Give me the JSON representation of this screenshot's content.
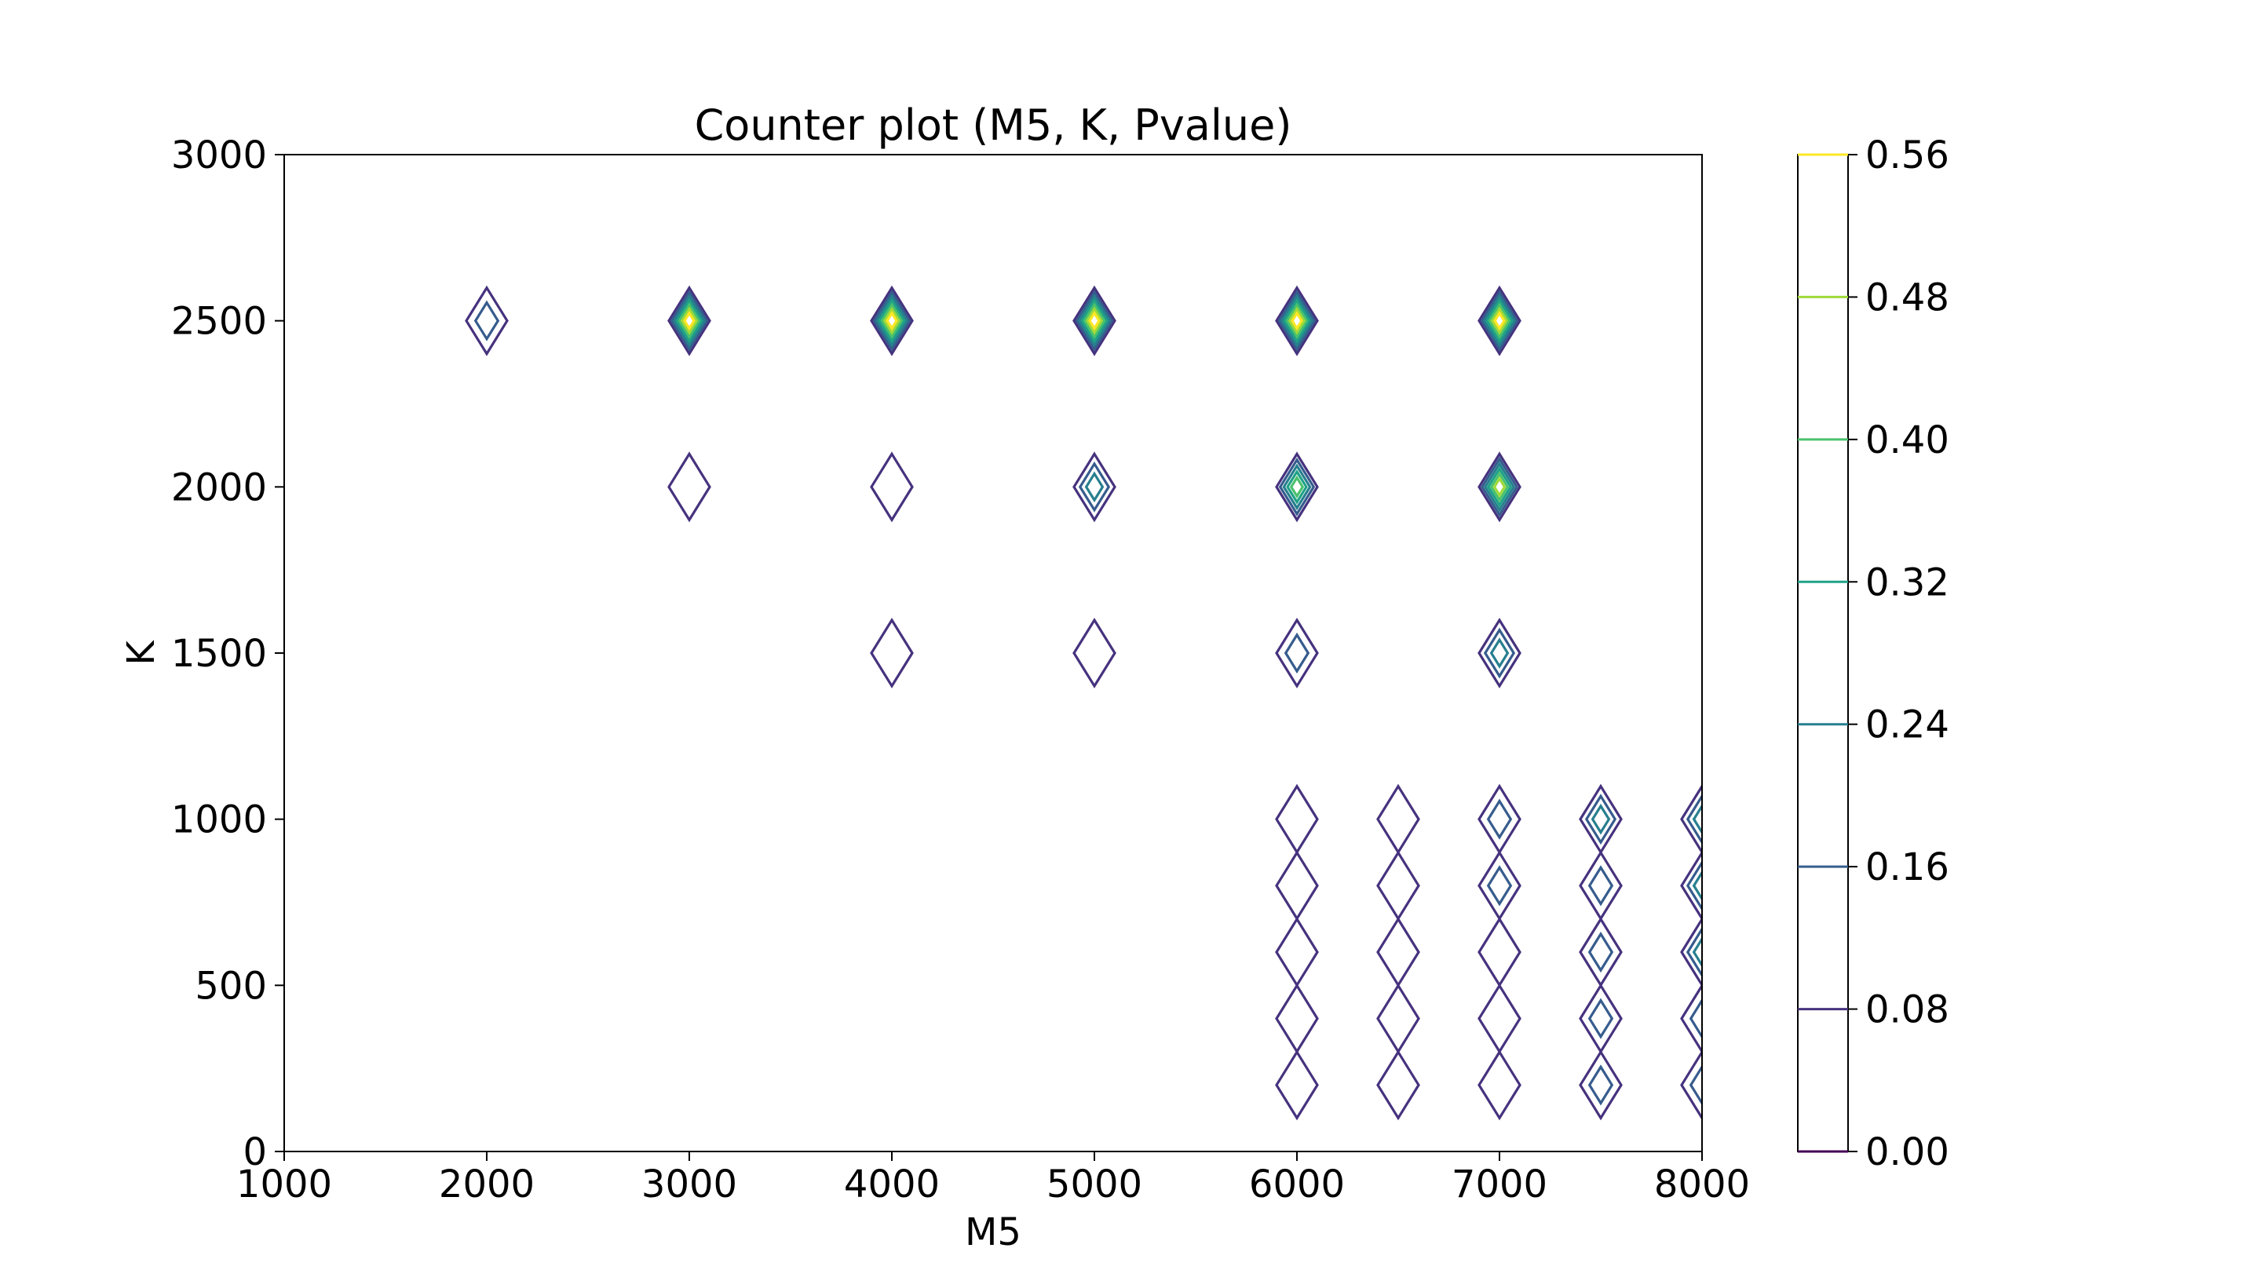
{
  "chart_data": {
    "type": "contour",
    "title": "Counter plot (M5, K, Pvalue)",
    "xlabel": "M5",
    "ylabel": "K",
    "xlim": [
      1000,
      8000
    ],
    "ylim": [
      0,
      3000
    ],
    "xticks": [
      "1000",
      "2000",
      "3000",
      "4000",
      "5000",
      "6000",
      "7000",
      "8000"
    ],
    "yticks": [
      "0",
      "500",
      "1000",
      "1500",
      "2000",
      "2500",
      "3000"
    ],
    "grid": false,
    "colorbar": {
      "levels": [
        0.0,
        0.08,
        0.16,
        0.24,
        0.32,
        0.4,
        0.48,
        0.56
      ],
      "tick_labels": [
        "0.00",
        "0.08",
        "0.16",
        "0.24",
        "0.32",
        "0.40",
        "0.48",
        "0.56"
      ],
      "colors": [
        "#440154",
        "#46327e",
        "#365c8d",
        "#277f8e",
        "#1fa187",
        "#4ac16d",
        "#a0da39",
        "#fde725"
      ],
      "placement": "right"
    },
    "peaks": [
      {
        "x": 2000,
        "y": 2500,
        "levels": 2
      },
      {
        "x": 3000,
        "y": 2500,
        "levels": 7
      },
      {
        "x": 4000,
        "y": 2500,
        "levels": 7
      },
      {
        "x": 5000,
        "y": 2500,
        "levels": 7
      },
      {
        "x": 6000,
        "y": 2500,
        "levels": 7
      },
      {
        "x": 7000,
        "y": 2500,
        "levels": 7
      },
      {
        "x": 3000,
        "y": 2000,
        "levels": 1
      },
      {
        "x": 4000,
        "y": 2000,
        "levels": 1
      },
      {
        "x": 5000,
        "y": 2000,
        "levels": 3
      },
      {
        "x": 6000,
        "y": 2000,
        "levels": 5
      },
      {
        "x": 7000,
        "y": 2000,
        "levels": 6
      },
      {
        "x": 4000,
        "y": 1500,
        "levels": 1
      },
      {
        "x": 5000,
        "y": 1500,
        "levels": 1
      },
      {
        "x": 6000,
        "y": 1500,
        "levels": 2
      },
      {
        "x": 7000,
        "y": 1500,
        "levels": 3
      },
      {
        "x": 6000,
        "y": 1000,
        "levels": 1
      },
      {
        "x": 6000,
        "y": 800,
        "levels": 1
      },
      {
        "x": 6000,
        "y": 600,
        "levels": 1
      },
      {
        "x": 6000,
        "y": 400,
        "levels": 1
      },
      {
        "x": 6000,
        "y": 200,
        "levels": 1
      },
      {
        "x": 6500,
        "y": 1000,
        "levels": 1
      },
      {
        "x": 6500,
        "y": 800,
        "levels": 1
      },
      {
        "x": 6500,
        "y": 600,
        "levels": 1
      },
      {
        "x": 6500,
        "y": 400,
        "levels": 1
      },
      {
        "x": 6500,
        "y": 200,
        "levels": 1
      },
      {
        "x": 7000,
        "y": 1000,
        "levels": 2
      },
      {
        "x": 7000,
        "y": 800,
        "levels": 2
      },
      {
        "x": 7000,
        "y": 600,
        "levels": 1
      },
      {
        "x": 7000,
        "y": 400,
        "levels": 1
      },
      {
        "x": 7000,
        "y": 200,
        "levels": 1
      },
      {
        "x": 7500,
        "y": 1000,
        "levels": 3
      },
      {
        "x": 7500,
        "y": 800,
        "levels": 2
      },
      {
        "x": 7500,
        "y": 600,
        "levels": 2
      },
      {
        "x": 7500,
        "y": 400,
        "levels": 2
      },
      {
        "x": 7500,
        "y": 200,
        "levels": 2
      },
      {
        "x": 8000,
        "y": 1000,
        "levels": 3
      },
      {
        "x": 8000,
        "y": 800,
        "levels": 3
      },
      {
        "x": 8000,
        "y": 600,
        "levels": 3
      },
      {
        "x": 8000,
        "y": 400,
        "levels": 2
      },
      {
        "x": 8000,
        "y": 200,
        "levels": 2
      }
    ]
  }
}
